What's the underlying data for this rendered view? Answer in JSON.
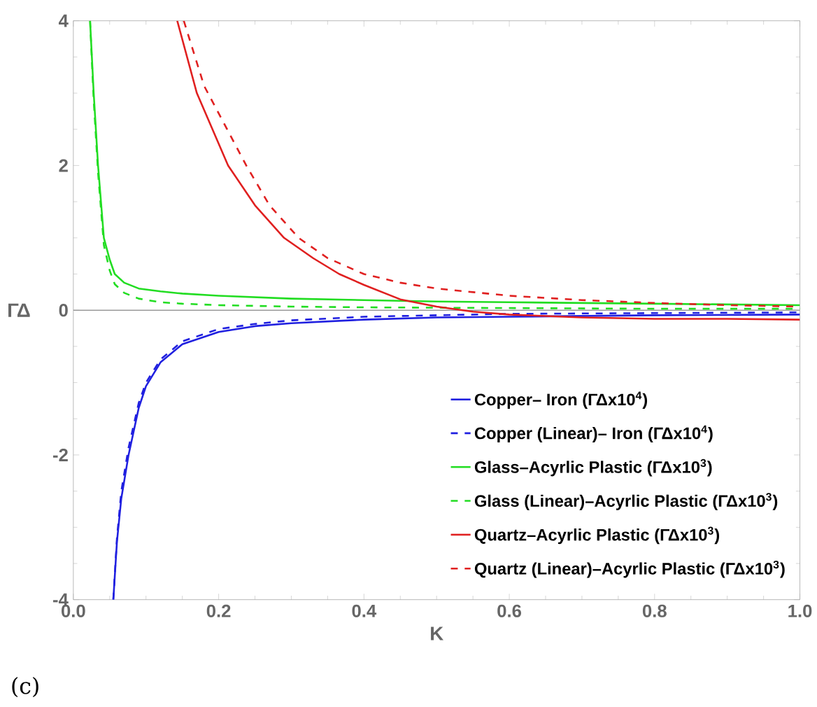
{
  "chart_data": {
    "type": "line",
    "xlabel": "K",
    "ylabel": "ΓΔ",
    "xlim": [
      0,
      1
    ],
    "ylim": [
      -4,
      4
    ],
    "xticks": [
      {
        "value": 0,
        "label": "0.0"
      },
      0.2,
      0.4,
      0.6,
      0.8,
      {
        "value": 1,
        "label": "1.0"
      }
    ],
    "yticks": [
      -4,
      -2,
      0,
      2,
      4
    ],
    "marker": "none",
    "legend": "bottom right",
    "grid": false,
    "ref_lines": [
      {
        "axis": "y",
        "value": 0,
        "color": "#999999"
      }
    ],
    "annotations": [
      "(c)"
    ],
    "series": [
      {
        "name": "Copper– Iron (ΓΔx10$^{4}$)",
        "color": "#2020e0",
        "line_style": "solid",
        "x": [
          0.055,
          0.06,
          0.066,
          0.076,
          0.09,
          0.1,
          0.12,
          0.15,
          0.2,
          0.25,
          0.3,
          0.4,
          0.5,
          0.6,
          0.8,
          1.0
        ],
        "values": [
          -4,
          -3.2,
          -2.6,
          -2,
          -1.35,
          -1.05,
          -0.72,
          -0.47,
          -0.3,
          -0.22,
          -0.18,
          -0.13,
          -0.1,
          -0.09,
          -0.07,
          -0.06
        ]
      },
      {
        "name": "Copper (Linear)– Iron (ΓΔx10$^{4}$)",
        "color": "#2020e0",
        "line_style": "dashed",
        "x": [
          0.055,
          0.06,
          0.066,
          0.076,
          0.09,
          0.1,
          0.12,
          0.15,
          0.2,
          0.25,
          0.3,
          0.4,
          0.5,
          0.6,
          0.8,
          1.0
        ],
        "values": [
          -4,
          -3.15,
          -2.5,
          -1.9,
          -1.28,
          -1.0,
          -0.68,
          -0.43,
          -0.26,
          -0.19,
          -0.14,
          -0.09,
          -0.07,
          -0.05,
          -0.04,
          -0.03
        ]
      },
      {
        "name": "Glass–Acyrlic Plastic (ΓΔx10$^{3}$)",
        "color": "#22dd22",
        "line_style": "solid",
        "x": [
          0.023,
          0.028,
          0.034,
          0.042,
          0.05,
          0.057,
          0.07,
          0.09,
          0.12,
          0.15,
          0.2,
          0.3,
          0.4,
          0.5,
          0.6,
          0.8,
          1.0
        ],
        "values": [
          4,
          3,
          2,
          1,
          0.7,
          0.5,
          0.38,
          0.3,
          0.26,
          0.23,
          0.2,
          0.16,
          0.14,
          0.12,
          0.11,
          0.09,
          0.07
        ]
      },
      {
        "name": "Glass (Linear)–Acyrlic Plastic (ΓΔx10$^{3}$)",
        "color": "#22dd22",
        "line_style": "dashed",
        "x": [
          0.023,
          0.028,
          0.034,
          0.042,
          0.05,
          0.057,
          0.07,
          0.09,
          0.12,
          0.15,
          0.2,
          0.3,
          0.4,
          0.6,
          0.8,
          1.0
        ],
        "values": [
          4,
          2.9,
          1.9,
          0.9,
          0.55,
          0.36,
          0.24,
          0.16,
          0.11,
          0.09,
          0.07,
          0.05,
          0.04,
          0.03,
          0.02,
          0.02
        ]
      },
      {
        "name": "Quartz–Acyrlic Plastic (ΓΔx10$^{3}$)",
        "color": "#e02020",
        "line_style": "solid",
        "x": [
          0.143,
          0.17,
          0.213,
          0.25,
          0.29,
          0.33,
          0.366,
          0.4,
          0.45,
          0.5,
          0.55,
          0.6,
          0.7,
          0.8,
          0.9,
          1.0
        ],
        "values": [
          4,
          3.0,
          2,
          1.45,
          1,
          0.72,
          0.5,
          0.35,
          0.15,
          0.05,
          -0.02,
          -0.06,
          -0.1,
          -0.12,
          -0.12,
          -0.13
        ]
      },
      {
        "name": "Quartz (Linear)–Acyrlic Plastic (ΓΔx10$^{3}$)",
        "color": "#e02020",
        "line_style": "dashed",
        "x": [
          0.152,
          0.18,
          0.238,
          0.27,
          0.31,
          0.35,
          0.4,
          0.45,
          0.5,
          0.6,
          0.7,
          0.8,
          0.9,
          1.0
        ],
        "values": [
          4,
          3.1,
          2,
          1.45,
          1,
          0.72,
          0.5,
          0.38,
          0.3,
          0.2,
          0.14,
          0.1,
          0.07,
          0.05
        ]
      }
    ]
  }
}
